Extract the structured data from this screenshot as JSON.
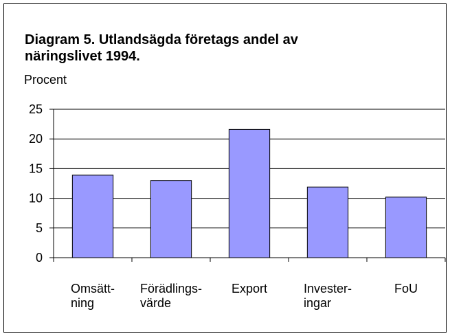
{
  "chart_data": {
    "type": "bar",
    "title": "Diagram 5. Utlandsägda företags andel av\nnäringslivet 1994.",
    "y_label": "Procent",
    "categories": [
      "Omsätt-\nning",
      "Förädlings-\nvärde",
      "Export",
      "Invester-\ningar",
      "FoU"
    ],
    "values": [
      13.9,
      13,
      21.6,
      11.9,
      10.2
    ],
    "color": "#9999ff",
    "ylim": [
      0,
      25
    ],
    "yticks": [
      0,
      5,
      10,
      15,
      20,
      25
    ],
    "grid": true
  }
}
